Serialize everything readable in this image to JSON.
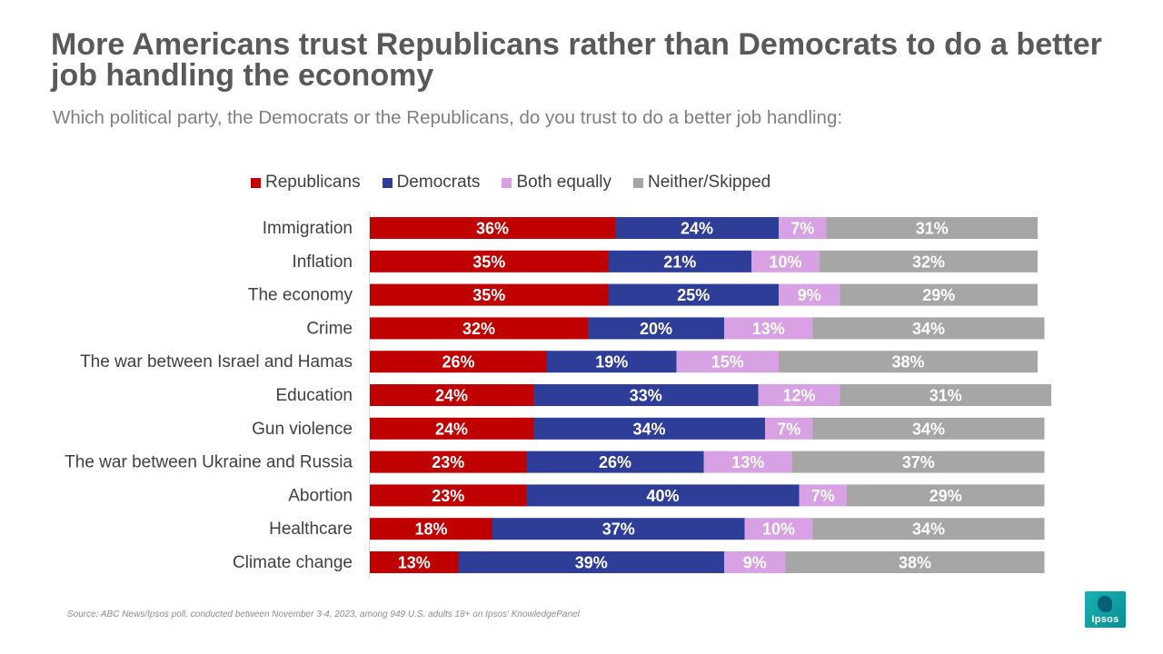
{
  "title": "More Americans trust Republicans rather than Democrats to do a better job handling the economy",
  "subtitle": "Which political party, the Democrats or the Republicans, do you trust to do a better job handling:",
  "source": "Source: ABC News/Ipsos poll, conducted between November 3-4, 2023, among 949 U.S. adults 18+ on Ipsos' KnowledgePanel",
  "logo_text": "Ipsos",
  "colors": {
    "republicans": "#c00000",
    "democrats": "#2e3d98",
    "both_equally": "#d7a1e3",
    "neither": "#a6a6a6",
    "label_text": "#ffffff",
    "category_text": "#404040"
  },
  "chart_data": {
    "type": "bar",
    "orientation": "horizontal",
    "stacked": true,
    "legend_position": "top",
    "categories": [
      "Immigration",
      "Inflation",
      "The economy",
      "Crime",
      "The war between Israel and Hamas",
      "Education",
      "Gun violence",
      "The war between Ukraine and Russia",
      "Abortion",
      "Healthcare",
      "Climate change"
    ],
    "series": [
      {
        "name": "Republicans",
        "color": "#c00000",
        "values": [
          36,
          35,
          35,
          32,
          26,
          24,
          24,
          23,
          23,
          18,
          13
        ]
      },
      {
        "name": "Democrats",
        "color": "#2e3d98",
        "values": [
          24,
          21,
          25,
          20,
          19,
          33,
          34,
          26,
          40,
          37,
          39
        ]
      },
      {
        "name": "Both equally",
        "color": "#d7a1e3",
        "values": [
          7,
          10,
          9,
          13,
          15,
          12,
          7,
          13,
          7,
          10,
          9
        ]
      },
      {
        "name": "Neither/Skipped",
        "color": "#a6a6a6",
        "values": [
          31,
          32,
          29,
          34,
          38,
          31,
          34,
          37,
          29,
          34,
          38
        ]
      }
    ],
    "value_suffix": "%",
    "xlim": [
      0,
      100
    ],
    "grid": false
  }
}
